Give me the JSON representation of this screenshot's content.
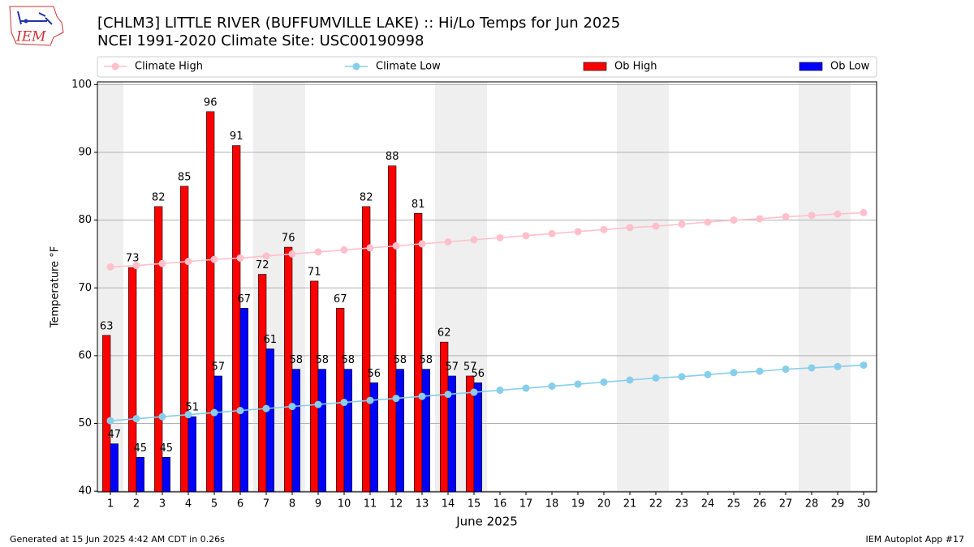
{
  "chart_data": {
    "type": "bar",
    "title": "[CHLM3] LITTLE RIVER (BUFFUMVILLE LAKE) :: Hi/Lo Temps for Jun 2025",
    "subtitle": "NCEI 1991-2020 Climate Site: USC00190998",
    "x_label": "June 2025",
    "y_label": "Temperature °F",
    "footer_left": "Generated at 15 Jun 2025 4:42 AM CDT in 0.26s",
    "footer_right": "IEM Autoplot App #17",
    "logo_text": "IEM",
    "categories": [
      "1",
      "2",
      "3",
      "4",
      "5",
      "6",
      "7",
      "8",
      "9",
      "10",
      "11",
      "12",
      "13",
      "14",
      "15",
      "16",
      "17",
      "18",
      "19",
      "20",
      "21",
      "22",
      "23",
      "24",
      "25",
      "26",
      "27",
      "28",
      "29",
      "30"
    ],
    "shaded_ranges": [
      [
        0.5,
        1.5
      ],
      [
        6.5,
        8.5
      ],
      [
        13.5,
        15.5
      ],
      [
        20.5,
        22.5
      ],
      [
        27.5,
        29.5
      ]
    ],
    "series": [
      {
        "name": "Climate High",
        "type": "line",
        "color": "#ffc0cb",
        "values": [
          73.1,
          73.3,
          73.6,
          73.9,
          74.2,
          74.4,
          74.7,
          75.0,
          75.3,
          75.6,
          75.9,
          76.2,
          76.5,
          76.8,
          77.1,
          77.4,
          77.7,
          78.0,
          78.3,
          78.6,
          78.9,
          79.1,
          79.4,
          79.7,
          80.0,
          80.2,
          80.5,
          80.7,
          80.9,
          81.1
        ]
      },
      {
        "name": "Climate Low",
        "type": "line",
        "color": "#87ceeb",
        "values": [
          50.4,
          50.7,
          51.0,
          51.3,
          51.6,
          51.9,
          52.2,
          52.5,
          52.8,
          53.1,
          53.4,
          53.7,
          54.0,
          54.3,
          54.6,
          54.9,
          55.2,
          55.5,
          55.8,
          56.1,
          56.4,
          56.7,
          56.9,
          57.2,
          57.5,
          57.7,
          58.0,
          58.2,
          58.4,
          58.6
        ]
      },
      {
        "name": "Ob High",
        "type": "bar",
        "color": "#ff0000",
        "values": [
          63,
          73,
          82,
          85,
          96,
          91,
          72,
          76,
          71,
          67,
          82,
          88,
          81,
          62,
          57,
          null,
          null,
          null,
          null,
          null,
          null,
          null,
          null,
          null,
          null,
          null,
          null,
          null,
          null,
          null
        ]
      },
      {
        "name": "Ob Low",
        "type": "bar",
        "color": "#0000ff",
        "values": [
          47,
          45,
          45,
          51,
          57,
          67,
          61,
          58,
          58,
          58,
          56,
          58,
          58,
          57,
          56,
          null,
          null,
          null,
          null,
          null,
          null,
          null,
          null,
          null,
          null,
          null,
          null,
          null,
          null,
          null
        ]
      }
    ],
    "xlim": [
      0.5,
      30.5
    ],
    "ylim": [
      39.9,
      100.4
    ],
    "yticks": [
      40,
      50,
      60,
      70,
      80,
      90,
      100
    ],
    "grid": true
  }
}
